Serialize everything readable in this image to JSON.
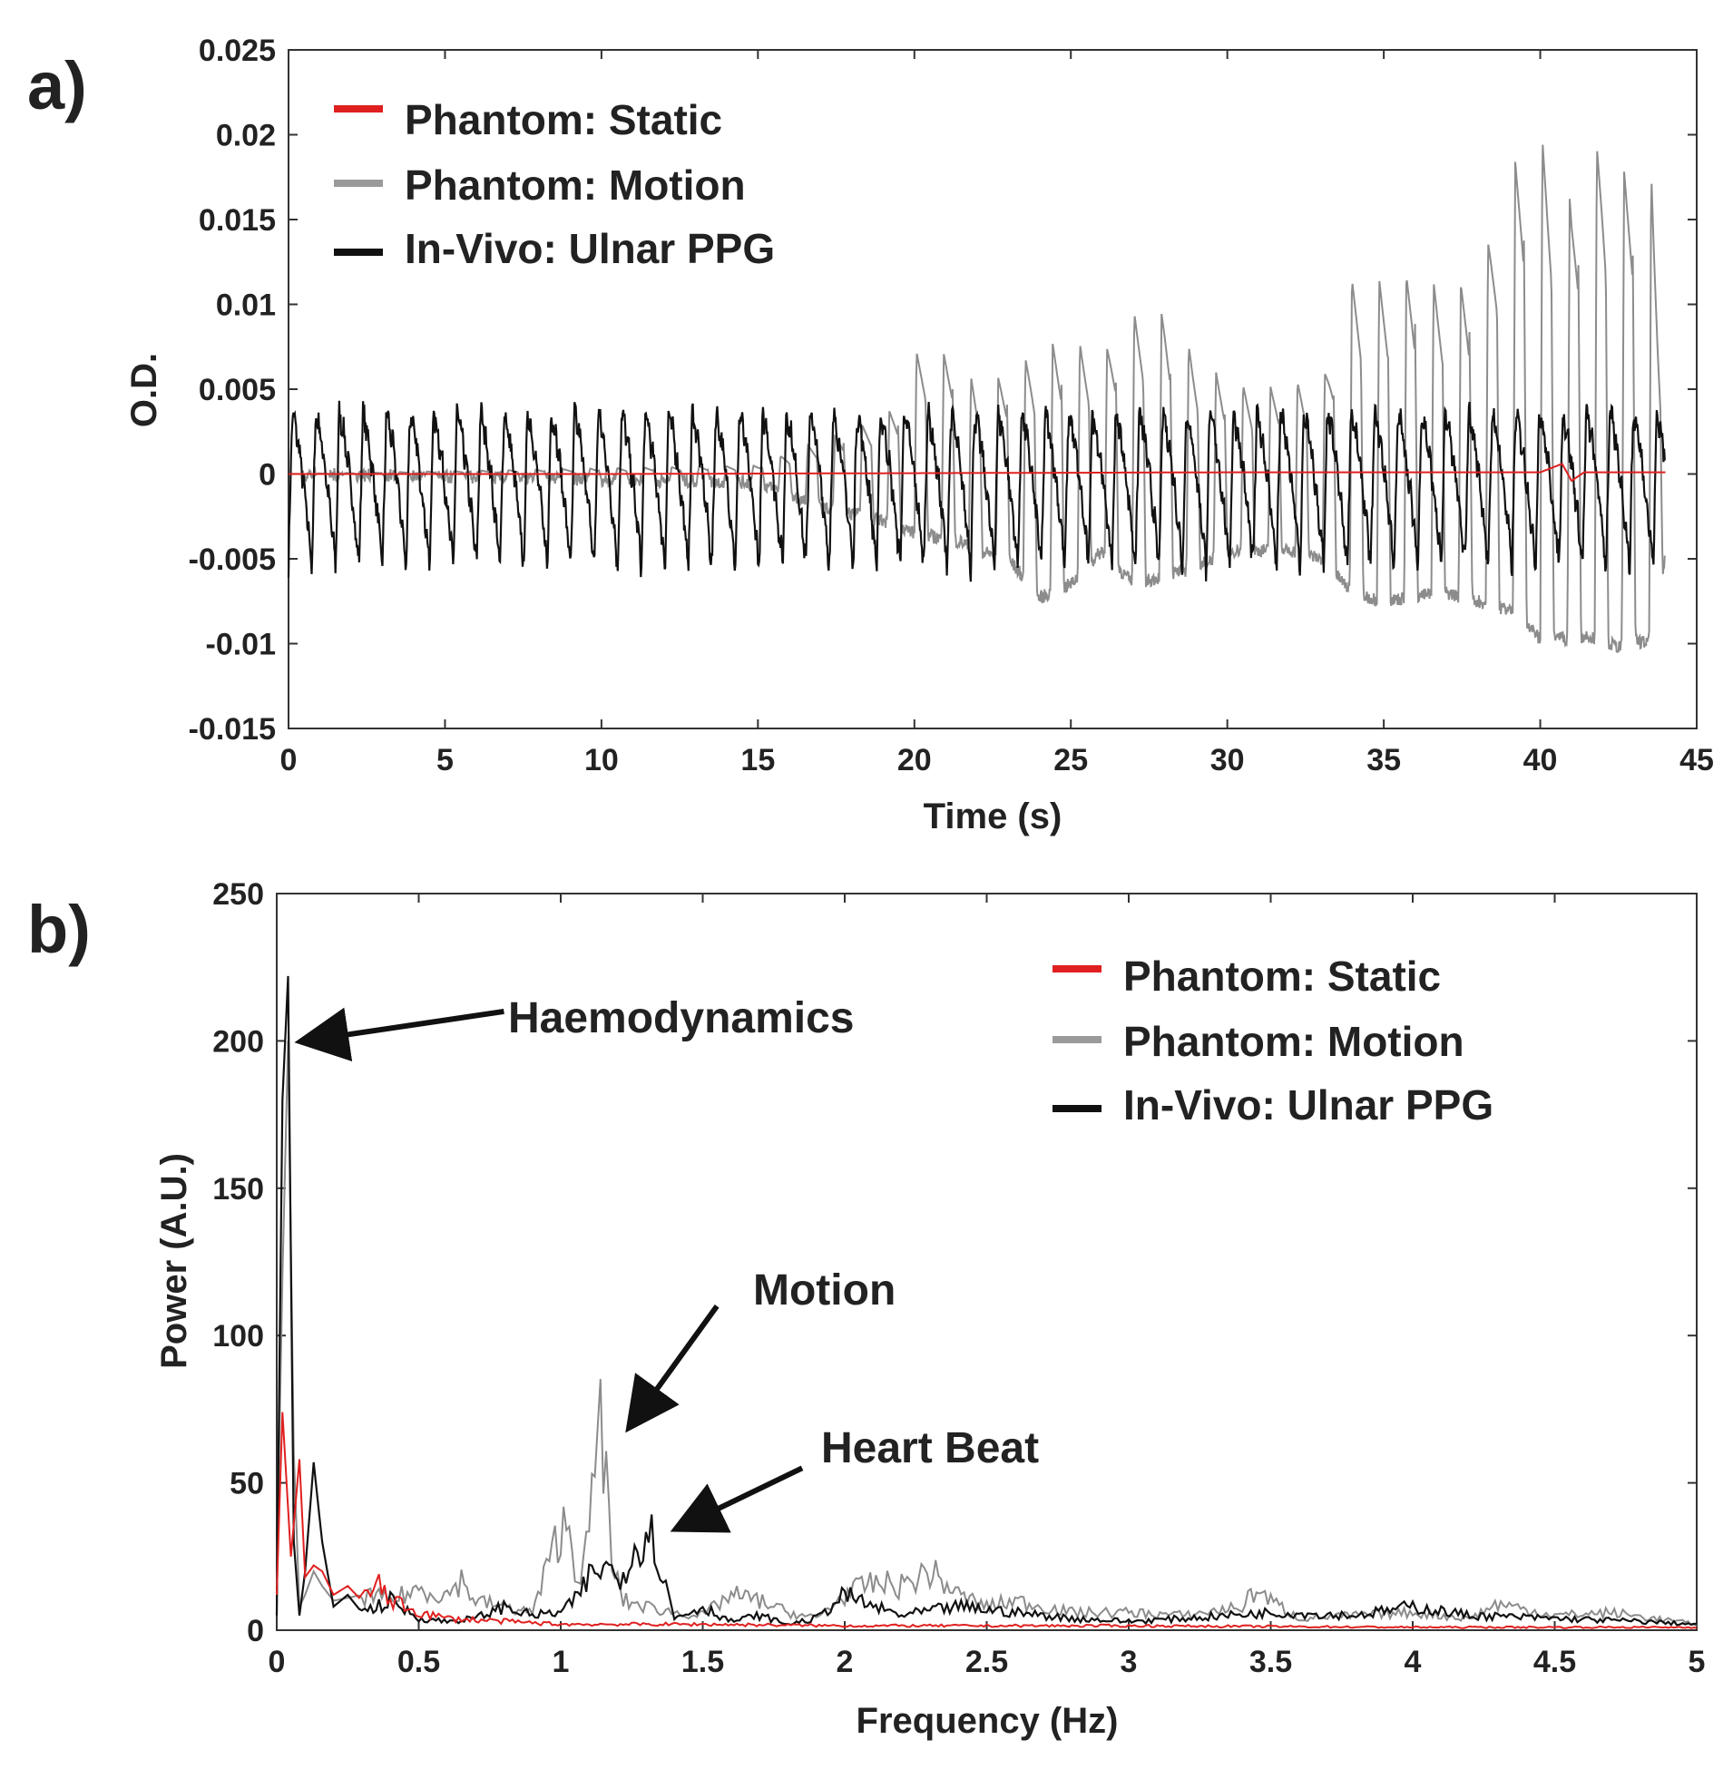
{
  "colors": {
    "static": "#e02020",
    "motion": "#8c8c8c",
    "invivo": "#111111",
    "axis": "#333333"
  },
  "chart_data": [
    {
      "panel": "a)",
      "type": "line",
      "xlabel": "Time (s)",
      "ylabel": "O.D.",
      "xlim": [
        0,
        45
      ],
      "ylim": [
        -0.015,
        0.025
      ],
      "xticks": [
        0,
        5,
        10,
        15,
        20,
        25,
        30,
        35,
        40,
        45
      ],
      "xtick_labels": [
        "0",
        "5",
        "10",
        "15",
        "20",
        "25",
        "30",
        "35",
        "40",
        "45"
      ],
      "yticks": [
        -0.015,
        -0.01,
        -0.005,
        0,
        0.005,
        0.01,
        0.015,
        0.02,
        0.025
      ],
      "ytick_labels": [
        "-0.015",
        "-0.01",
        "-0.005",
        "0",
        "0.005",
        "0.01",
        "0.015",
        "0.02",
        "0.025"
      ],
      "legend": {
        "position": "top-left",
        "entries": [
          "Phantom: Static",
          "Phantom: Motion",
          "In-Vivo: Ulnar PPG"
        ]
      },
      "series": [
        {
          "name": "Phantom: Static",
          "color_key": "static",
          "x": [
            0,
            10,
            20,
            30,
            40,
            40.7,
            41,
            41.4,
            44
          ],
          "values": [
            0,
            0,
            5e-05,
            0.0001,
            0.0001,
            0.0006,
            -0.0004,
            0.0001,
            0.0001
          ]
        },
        {
          "name": "Phantom: Motion",
          "color_key": "motion",
          "x": [
            0,
            15,
            17,
            18.5,
            19.5,
            20,
            21.5,
            22,
            23,
            24,
            25,
            26,
            27,
            28,
            29,
            30,
            31,
            32,
            33,
            34,
            35,
            36,
            37,
            38,
            39,
            39.5,
            40,
            40.5,
            41,
            41.5,
            42,
            42.5,
            43,
            43.5,
            44
          ],
          "peaks": [
            0,
            0.0005,
            0.002,
            0.003,
            0.004,
            0.0072,
            0.007,
            0.005,
            0.006,
            0.0075,
            0.008,
            0.007,
            0.0095,
            0.0095,
            0.007,
            0.0055,
            0.005,
            0.0055,
            0.0052,
            0.0115,
            0.0115,
            0.0118,
            0.011,
            0.0115,
            0.018,
            0.019,
            0.02,
            0.018,
            0.016,
            0.019,
            0.0195,
            0.0175,
            0.0185,
            0.0195,
            0.002
          ],
          "troughs": [
            0,
            -0.0005,
            -0.002,
            -0.0025,
            -0.003,
            -0.0035,
            -0.004,
            -0.0045,
            -0.005,
            -0.0073,
            -0.0065,
            -0.0045,
            -0.0065,
            -0.006,
            -0.0055,
            -0.0045,
            -0.0045,
            -0.0045,
            -0.005,
            -0.007,
            -0.0075,
            -0.0072,
            -0.007,
            -0.0075,
            -0.008,
            -0.0085,
            -0.0098,
            -0.0095,
            -0.0098,
            -0.0095,
            -0.0098,
            -0.0102,
            -0.0098,
            -0.01,
            -0.005
          ]
        },
        {
          "name": "In-Vivo: Ulnar PPG",
          "color_key": "invivo",
          "heart_rate_hz": 1.33,
          "peak": 0.0035,
          "trough": -0.0055
        }
      ]
    },
    {
      "panel": "b)",
      "type": "line",
      "xlabel": "Frequency (Hz)",
      "ylabel": "Power (A.U.)",
      "xlim": [
        0,
        5
      ],
      "ylim": [
        0,
        250
      ],
      "xticks": [
        0,
        0.5,
        1,
        1.5,
        2,
        2.5,
        3,
        3.5,
        4,
        4.5,
        5
      ],
      "xtick_labels": [
        "0",
        "0.5",
        "1",
        "1.5",
        "2",
        "2.5",
        "3",
        "3.5",
        "4",
        "4.5",
        "5"
      ],
      "yticks": [
        0,
        50,
        100,
        150,
        200,
        250
      ],
      "ytick_labels": [
        "0",
        "50",
        "100",
        "150",
        "200",
        "250"
      ],
      "legend": {
        "position": "top-right",
        "entries": [
          "Phantom: Static",
          "Phantom: Motion",
          "In-Vivo: Ulnar PPG"
        ]
      },
      "series": [
        {
          "name": "Phantom: Static",
          "color_key": "static",
          "x": [
            0,
            0.02,
            0.05,
            0.08,
            0.1,
            0.13,
            0.16,
            0.2,
            0.25,
            0.3,
            0.35,
            0.4,
            0.5,
            0.6,
            0.8,
            1.0,
            1.5,
            2.0,
            3.0,
            4.0,
            5.0
          ],
          "values": [
            12,
            74,
            25,
            58,
            18,
            22,
            20,
            12,
            15,
            10,
            16,
            10,
            6,
            4,
            3,
            2,
            2,
            1.5,
            1.5,
            1,
            1
          ]
        },
        {
          "name": "Phantom: Motion",
          "color_key": "motion",
          "x": [
            0,
            0.02,
            0.04,
            0.06,
            0.08,
            0.1,
            0.13,
            0.16,
            0.2,
            0.3,
            0.4,
            0.5,
            0.6,
            0.65,
            0.7,
            0.8,
            0.9,
            0.95,
            1.0,
            1.03,
            1.06,
            1.1,
            1.14,
            1.18,
            1.22,
            1.3,
            1.4,
            1.5,
            1.6,
            1.7,
            1.8,
            1.9,
            2.0,
            2.1,
            2.2,
            2.3,
            2.4,
            2.5,
            2.6,
            2.8,
            3.0,
            3.2,
            3.4,
            3.45,
            3.5,
            3.6,
            3.8,
            4.0,
            4.2,
            4.3,
            4.5,
            4.7,
            5.0
          ],
          "values": [
            15,
            120,
            200,
            60,
            8,
            12,
            20,
            15,
            10,
            12,
            10,
            14,
            12,
            17,
            10,
            8,
            6,
            20,
            35,
            34,
            18,
            30,
            77,
            22,
            10,
            8,
            6,
            5,
            12,
            10,
            6,
            4,
            12,
            16,
            15,
            20,
            12,
            8,
            10,
            6,
            6,
            5,
            8,
            14,
            10,
            4,
            5,
            6,
            4,
            9,
            5,
            6,
            2
          ]
        },
        {
          "name": "In-Vivo: Ulnar PPG",
          "color_key": "invivo",
          "x": [
            0,
            0.02,
            0.04,
            0.06,
            0.08,
            0.1,
            0.13,
            0.16,
            0.2,
            0.25,
            0.3,
            0.4,
            0.5,
            0.6,
            0.7,
            0.8,
            0.9,
            1.0,
            1.05,
            1.1,
            1.15,
            1.2,
            1.25,
            1.3,
            1.33,
            1.37,
            1.4,
            1.5,
            1.6,
            1.7,
            1.8,
            1.9,
            2.0,
            2.1,
            2.2,
            2.4,
            2.6,
            2.8,
            3.0,
            3.2,
            3.5,
            3.8,
            4.0,
            4.2,
            4.5,
            4.8,
            5.0
          ],
          "values": [
            5,
            180,
            222,
            30,
            5,
            20,
            57,
            30,
            8,
            12,
            6,
            10,
            4,
            3,
            4,
            8,
            5,
            6,
            10,
            18,
            22,
            18,
            25,
            35,
            30,
            15,
            4,
            8,
            3,
            5,
            2,
            4,
            12,
            8,
            5,
            8,
            6,
            4,
            3,
            4,
            6,
            5,
            8,
            5,
            4,
            3,
            2
          ]
        }
      ],
      "annotations": [
        {
          "text": "Haemodynamics",
          "target": [
            0.1,
            200
          ],
          "label_at": [
            0.8,
            210
          ]
        },
        {
          "text": "Motion",
          "target": [
            1.25,
            70
          ],
          "label_at": [
            1.55,
            110
          ]
        },
        {
          "text": "Heart Beat",
          "target": [
            1.42,
            35
          ],
          "label_at": [
            1.85,
            55
          ]
        }
      ]
    }
  ]
}
